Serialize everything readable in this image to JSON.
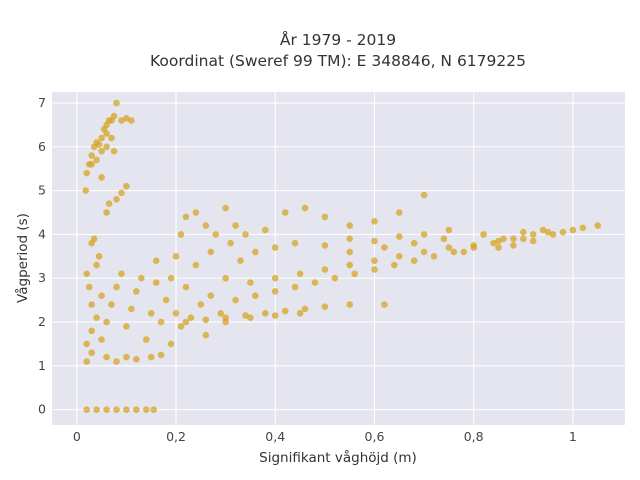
{
  "chart_data": {
    "type": "scatter",
    "title_line1": "År 1979 - 2019",
    "title_line2": "Koordinat (Sweref 99 TM): E 348846, N 6179225",
    "xlabel": "Signifikant våghöjd (m)",
    "ylabel": "Vågperiod (s)",
    "xlim": [
      -0.05,
      1.105
    ],
    "ylim": [
      -0.35,
      7.25
    ],
    "x_ticks": [
      {
        "value": 0,
        "label": "0"
      },
      {
        "value": 0.2,
        "label": "0,2"
      },
      {
        "value": 0.4,
        "label": "0,4"
      },
      {
        "value": 0.6,
        "label": "0,6"
      },
      {
        "value": 0.8,
        "label": "0,8"
      },
      {
        "value": 1,
        "label": "1"
      }
    ],
    "y_ticks": [
      {
        "value": 0,
        "label": "0"
      },
      {
        "value": 1,
        "label": "1"
      },
      {
        "value": 2,
        "label": "2"
      },
      {
        "value": 3,
        "label": "3"
      },
      {
        "value": 4,
        "label": "4"
      },
      {
        "value": 5,
        "label": "5"
      },
      {
        "value": 6,
        "label": "6"
      },
      {
        "value": 7,
        "label": "7"
      }
    ],
    "grid": true,
    "legend": "none",
    "colors": {
      "marker": "#D4A421",
      "plot_bg": "#E5E5F0",
      "grid": "#ffffff"
    },
    "points": [
      [
        0.02,
        0
      ],
      [
        0.04,
        0
      ],
      [
        0.06,
        0
      ],
      [
        0.08,
        0
      ],
      [
        0.1,
        0
      ],
      [
        0.12,
        0
      ],
      [
        0.14,
        0
      ],
      [
        0.155,
        0
      ],
      [
        0.02,
        1.1
      ],
      [
        0.03,
        1.3
      ],
      [
        0.02,
        1.5
      ],
      [
        0.03,
        1.8
      ],
      [
        0.04,
        2.1
      ],
      [
        0.03,
        2.4
      ],
      [
        0.05,
        2.6
      ],
      [
        0.06,
        1.2
      ],
      [
        0.08,
        1.1
      ],
      [
        0.1,
        1.2
      ],
      [
        0.12,
        1.15
      ],
      [
        0.15,
        1.2
      ],
      [
        0.17,
        1.25
      ],
      [
        0.05,
        1.6
      ],
      [
        0.06,
        2.0
      ],
      [
        0.07,
        2.4
      ],
      [
        0.08,
        2.8
      ],
      [
        0.09,
        3.1
      ],
      [
        0.1,
        1.9
      ],
      [
        0.11,
        2.3
      ],
      [
        0.12,
        2.7
      ],
      [
        0.13,
        3.0
      ],
      [
        0.14,
        1.6
      ],
      [
        0.15,
        2.2
      ],
      [
        0.16,
        2.9
      ],
      [
        0.16,
        3.4
      ],
      [
        0.17,
        2.0
      ],
      [
        0.18,
        2.5
      ],
      [
        0.19,
        3.0
      ],
      [
        0.2,
        3.5
      ],
      [
        0.21,
        4.0
      ],
      [
        0.22,
        4.4
      ],
      [
        0.2,
        2.2
      ],
      [
        0.22,
        2.8
      ],
      [
        0.24,
        3.3
      ],
      [
        0.24,
        4.5
      ],
      [
        0.26,
        4.2
      ],
      [
        0.27,
        3.6
      ],
      [
        0.28,
        4.0
      ],
      [
        0.19,
        1.5
      ],
      [
        0.21,
        1.9
      ],
      [
        0.23,
        2.1
      ],
      [
        0.25,
        2.4
      ],
      [
        0.26,
        1.7
      ],
      [
        0.27,
        2.6
      ],
      [
        0.29,
        2.2
      ],
      [
        0.3,
        3.0
      ],
      [
        0.31,
        3.8
      ],
      [
        0.3,
        4.6
      ],
      [
        0.32,
        4.2
      ],
      [
        0.33,
        3.4
      ],
      [
        0.34,
        4.0
      ],
      [
        0.22,
        2.0
      ],
      [
        0.26,
        2.05
      ],
      [
        0.3,
        2.1
      ],
      [
        0.34,
        2.15
      ],
      [
        0.38,
        2.2
      ],
      [
        0.42,
        2.25
      ],
      [
        0.46,
        2.3
      ],
      [
        0.5,
        2.35
      ],
      [
        0.32,
        2.5
      ],
      [
        0.36,
        2.6
      ],
      [
        0.4,
        2.7
      ],
      [
        0.44,
        2.8
      ],
      [
        0.48,
        2.9
      ],
      [
        0.52,
        3.0
      ],
      [
        0.56,
        3.1
      ],
      [
        0.6,
        3.2
      ],
      [
        0.64,
        3.3
      ],
      [
        0.68,
        3.4
      ],
      [
        0.72,
        3.5
      ],
      [
        0.76,
        3.6
      ],
      [
        0.8,
        3.7
      ],
      [
        0.84,
        3.8
      ],
      [
        0.88,
        3.9
      ],
      [
        0.92,
        4.0
      ],
      [
        0.95,
        4.05
      ],
      [
        0.35,
        2.9
      ],
      [
        0.4,
        3.0
      ],
      [
        0.45,
        3.1
      ],
      [
        0.5,
        3.2
      ],
      [
        0.55,
        3.3
      ],
      [
        0.6,
        3.4
      ],
      [
        0.65,
        3.5
      ],
      [
        0.7,
        3.6
      ],
      [
        0.75,
        3.7
      ],
      [
        0.8,
        3.75
      ],
      [
        0.85,
        3.85
      ],
      [
        0.9,
        3.9
      ],
      [
        0.36,
        3.6
      ],
      [
        0.4,
        3.7
      ],
      [
        0.44,
        3.8
      ],
      [
        0.5,
        3.75
      ],
      [
        0.55,
        3.9
      ],
      [
        0.6,
        3.85
      ],
      [
        0.65,
        3.95
      ],
      [
        0.7,
        4.0
      ],
      [
        0.75,
        4.1
      ],
      [
        0.38,
        4.1
      ],
      [
        0.42,
        4.5
      ],
      [
        0.46,
        4.6
      ],
      [
        0.5,
        4.4
      ],
      [
        0.55,
        4.2
      ],
      [
        0.6,
        4.3
      ],
      [
        0.65,
        4.5
      ],
      [
        0.7,
        4.9
      ],
      [
        0.3,
        2.0
      ],
      [
        0.35,
        2.1
      ],
      [
        0.4,
        2.15
      ],
      [
        0.45,
        2.2
      ],
      [
        0.55,
        2.4
      ],
      [
        0.62,
        2.4
      ],
      [
        0.55,
        3.6
      ],
      [
        0.62,
        3.7
      ],
      [
        0.68,
        3.8
      ],
      [
        0.74,
        3.9
      ],
      [
        0.78,
        3.6
      ],
      [
        0.82,
        4.0
      ],
      [
        0.86,
        3.9
      ],
      [
        0.9,
        4.05
      ],
      [
        0.94,
        4.1
      ],
      [
        0.98,
        4.05
      ],
      [
        1.0,
        4.1
      ],
      [
        1.02,
        4.15
      ],
      [
        1.05,
        4.2
      ],
      [
        0.85,
        3.7
      ],
      [
        0.88,
        3.75
      ],
      [
        0.92,
        3.85
      ],
      [
        0.96,
        4.0
      ],
      [
        0.018,
        5.0
      ],
      [
        0.02,
        5.4
      ],
      [
        0.025,
        5.6
      ],
      [
        0.03,
        5.8
      ],
      [
        0.035,
        6.0
      ],
      [
        0.04,
        6.1
      ],
      [
        0.05,
        6.2
      ],
      [
        0.055,
        6.4
      ],
      [
        0.06,
        6.5
      ],
      [
        0.065,
        6.6
      ],
      [
        0.07,
        6.6
      ],
      [
        0.075,
        6.7
      ],
      [
        0.08,
        7.0
      ],
      [
        0.09,
        6.6
      ],
      [
        0.1,
        6.65
      ],
      [
        0.11,
        6.6
      ],
      [
        0.03,
        5.6
      ],
      [
        0.04,
        5.7
      ],
      [
        0.05,
        5.9
      ],
      [
        0.06,
        6.0
      ],
      [
        0.07,
        6.2
      ],
      [
        0.075,
        5.9
      ],
      [
        0.06,
        6.3
      ],
      [
        0.045,
        6.05
      ],
      [
        0.06,
        4.5
      ],
      [
        0.065,
        4.7
      ],
      [
        0.08,
        4.8
      ],
      [
        0.1,
        5.1
      ],
      [
        0.05,
        5.3
      ],
      [
        0.09,
        4.95
      ],
      [
        0.03,
        3.8
      ],
      [
        0.035,
        3.9
      ],
      [
        0.02,
        3.1
      ],
      [
        0.025,
        2.8
      ],
      [
        0.04,
        3.3
      ],
      [
        0.045,
        3.5
      ]
    ]
  }
}
